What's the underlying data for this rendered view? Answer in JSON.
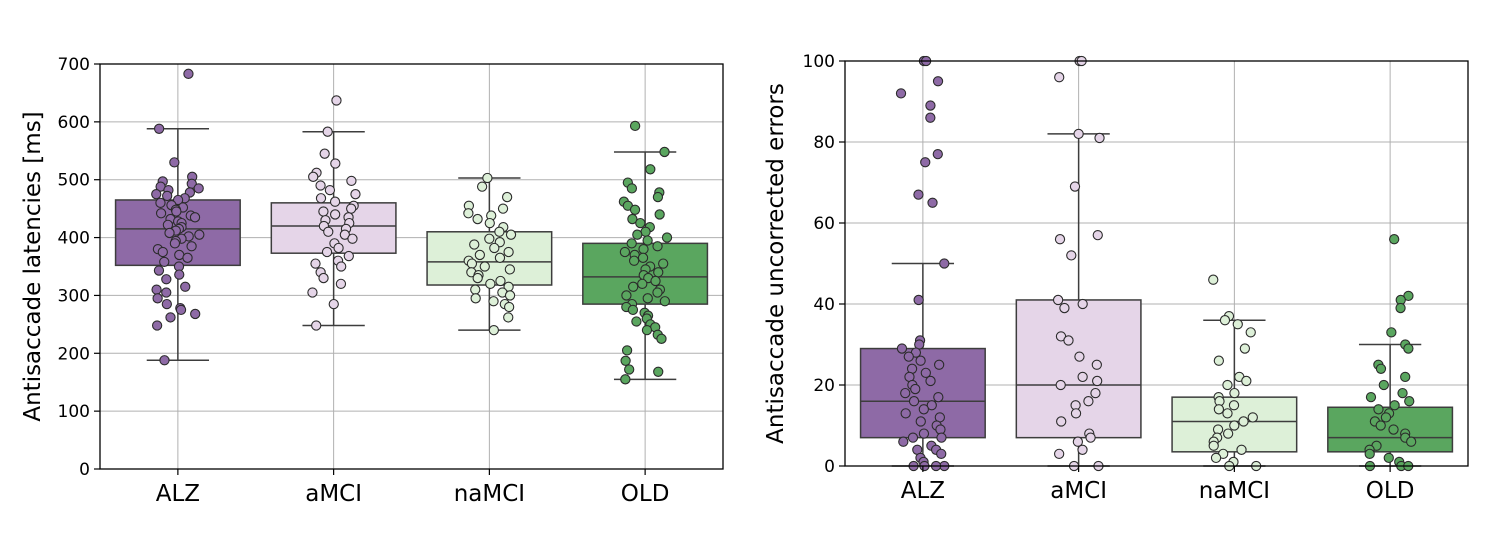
{
  "chart_data": [
    {
      "type": "boxplot",
      "ylabel": "Antisaccade latencies [ms]",
      "xlabel": "",
      "ylim": [
        0,
        700
      ],
      "yticks": [
        0,
        100,
        200,
        300,
        400,
        500,
        600,
        700
      ],
      "grid": true,
      "categories": [
        "ALZ",
        "aMCI",
        "naMCI",
        "OLD"
      ],
      "groups": [
        {
          "name": "ALZ",
          "color": "#8e6aa6",
          "whislo": 188,
          "q1": 352,
          "median": 415,
          "q3": 465,
          "whishi": 588,
          "points": [
            683,
            588,
            530,
            505,
            497,
            493,
            488,
            485,
            482,
            478,
            475,
            472,
            468,
            465,
            460,
            456,
            452,
            448,
            445,
            442,
            438,
            435,
            432,
            428,
            425,
            422,
            418,
            415,
            412,
            408,
            405,
            402,
            398,
            394,
            390,
            385,
            380,
            375,
            370,
            365,
            358,
            350,
            343,
            336,
            328,
            315,
            310,
            305,
            295,
            285,
            278,
            275,
            268,
            262,
            248,
            188
          ]
        },
        {
          "name": "aMCI",
          "color": "#e5d5e8",
          "whislo": 248,
          "q1": 373,
          "median": 420,
          "q3": 460,
          "whishi": 583,
          "points": [
            637,
            583,
            545,
            528,
            512,
            505,
            498,
            490,
            482,
            475,
            468,
            462,
            455,
            450,
            445,
            440,
            435,
            430,
            425,
            420,
            415,
            410,
            405,
            398,
            390,
            382,
            375,
            368,
            360,
            355,
            350,
            340,
            330,
            320,
            305,
            285,
            248
          ]
        },
        {
          "name": "naMCI",
          "color": "#ddf0d8",
          "whislo": 240,
          "q1": 318,
          "median": 358,
          "q3": 410,
          "whishi": 503,
          "points": [
            503,
            488,
            470,
            455,
            450,
            442,
            438,
            432,
            425,
            418,
            410,
            405,
            398,
            392,
            388,
            382,
            375,
            370,
            365,
            360,
            355,
            350,
            345,
            340,
            335,
            330,
            325,
            320,
            315,
            310,
            305,
            300,
            295,
            290,
            285,
            280,
            262,
            240
          ]
        },
        {
          "name": "OLD",
          "color": "#5aa65f",
          "whislo": 155,
          "q1": 285,
          "median": 332,
          "q3": 390,
          "whishi": 548,
          "points": [
            593,
            548,
            518,
            495,
            485,
            478,
            470,
            462,
            455,
            448,
            440,
            432,
            425,
            418,
            410,
            405,
            400,
            395,
            390,
            385,
            380,
            375,
            370,
            365,
            360,
            355,
            350,
            345,
            340,
            335,
            330,
            325,
            320,
            315,
            310,
            305,
            300,
            295,
            290,
            285,
            280,
            275,
            270,
            265,
            260,
            255,
            250,
            245,
            240,
            232,
            225,
            205,
            187,
            172,
            168,
            155
          ]
        }
      ]
    },
    {
      "type": "boxplot",
      "ylabel": "Antisaccade uncorrected errors",
      "xlabel": "",
      "ylim": [
        0,
        100
      ],
      "yticks": [
        0,
        20,
        40,
        60,
        80,
        100
      ],
      "grid": true,
      "categories": [
        "ALZ",
        "aMCI",
        "naMCI",
        "OLD"
      ],
      "groups": [
        {
          "name": "ALZ",
          "color": "#8e6aa6",
          "whislo": 0,
          "q1": 7,
          "median": 16,
          "q3": 29,
          "whishi": 50,
          "points": [
            100,
            100,
            95,
            92,
            89,
            86,
            77,
            75,
            67,
            65,
            50,
            41,
            31,
            30,
            29,
            28,
            27,
            26,
            25,
            24,
            23,
            22,
            21,
            20,
            19,
            18,
            17,
            16,
            15,
            14,
            13,
            12,
            11,
            10,
            9,
            8,
            7,
            7,
            6,
            5,
            4,
            4,
            3,
            2,
            1,
            0,
            0,
            0,
            0
          ]
        },
        {
          "name": "aMCI",
          "color": "#e5d5e8",
          "whislo": 0,
          "q1": 7,
          "median": 20,
          "q3": 41,
          "whishi": 82,
          "points": [
            100,
            100,
            96,
            82,
            81,
            69,
            57,
            56,
            52,
            41,
            40,
            39,
            32,
            31,
            27,
            25,
            22,
            21,
            20,
            18,
            16,
            15,
            13,
            11,
            8,
            7,
            6,
            4,
            3,
            0,
            0
          ]
        },
        {
          "name": "naMCI",
          "color": "#ddf0d8",
          "whislo": 0,
          "q1": 3.5,
          "median": 11,
          "q3": 17,
          "whishi": 36,
          "points": [
            46,
            37,
            36,
            35,
            33,
            29,
            26,
            22,
            21,
            20,
            18,
            17,
            16,
            15,
            14,
            13,
            12,
            11,
            10,
            9,
            8,
            7,
            6,
            5,
            4,
            3,
            2,
            1,
            0,
            0
          ]
        },
        {
          "name": "OLD",
          "color": "#5aa65f",
          "whislo": 0,
          "q1": 3.5,
          "median": 7,
          "q3": 14.5,
          "whishi": 30,
          "points": [
            56,
            42,
            41,
            39,
            33,
            30,
            29,
            25,
            24,
            22,
            20,
            18,
            17,
            16,
            15,
            14,
            13,
            12,
            11,
            10,
            9,
            8,
            7,
            6,
            5,
            4,
            3,
            2,
            1,
            0,
            0,
            0
          ]
        }
      ]
    }
  ]
}
